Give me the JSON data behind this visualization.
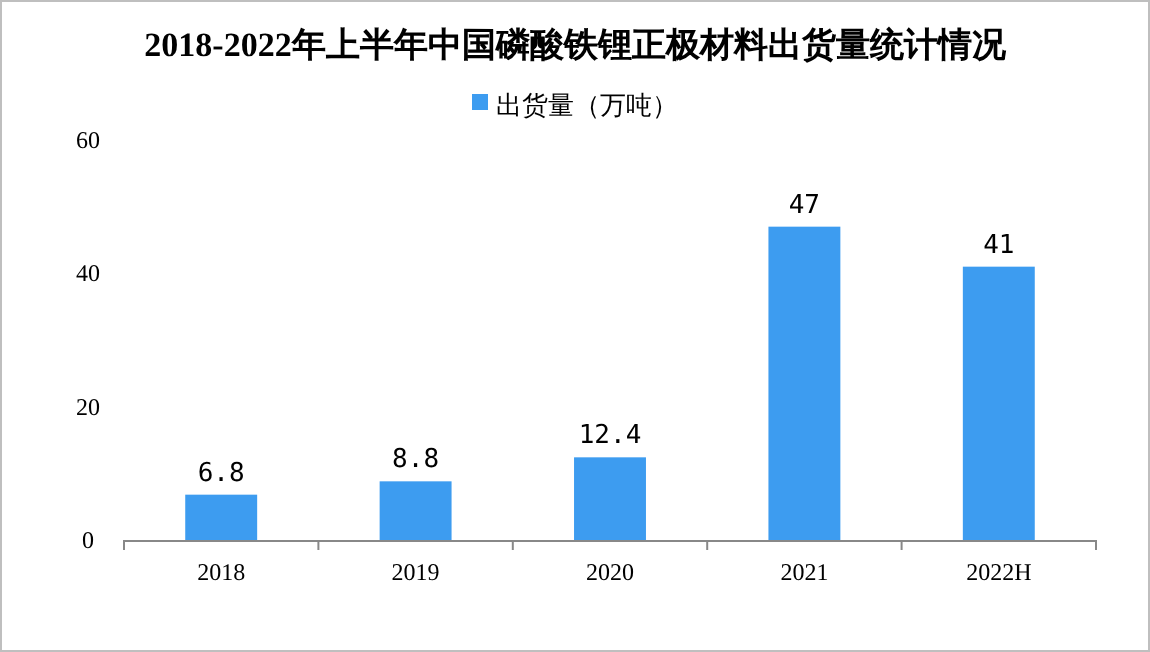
{
  "chart_data": {
    "type": "bar",
    "title": "2018-2022年上半年中国磷酸铁锂正极材料出货量统计情况",
    "categories": [
      "2018",
      "2019",
      "2020",
      "2021",
      "2022H"
    ],
    "series": [
      {
        "name": "出货量（万吨）",
        "color": "#3d9cf0",
        "values": [
          6.8,
          8.8,
          12.4,
          47,
          41
        ]
      }
    ],
    "ylim": [
      0,
      60
    ],
    "yticks": [
      0,
      20,
      40,
      60
    ],
    "grid": false,
    "legend": "top",
    "data_labels": true
  }
}
